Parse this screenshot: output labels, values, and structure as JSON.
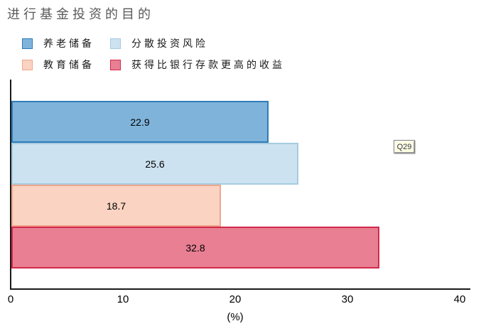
{
  "chart_data": {
    "type": "bar",
    "orientation": "horizontal",
    "title": "进行基金投资的目的",
    "xlabel": "(%)",
    "xlim": [
      0,
      40
    ],
    "xticks": [
      0,
      10,
      20,
      30,
      40
    ],
    "grid": false,
    "legend_position": "top-left-two-columns",
    "series": [
      {
        "name": "养老储备",
        "value": 22.9,
        "fill": "#7FB3DA",
        "border": "#2E7CB8"
      },
      {
        "name": "分散投资风险",
        "value": 25.6,
        "fill": "#CCE2F0",
        "border": "#A5CBE0"
      },
      {
        "name": "教育储备",
        "value": 18.7,
        "fill": "#FAD3C2",
        "border": "#F1A68C"
      },
      {
        "name": "获得比银行存款更高的收益",
        "value": 32.8,
        "fill": "#E87F93",
        "border": "#D2294B"
      }
    ],
    "annotation": "Q29"
  }
}
